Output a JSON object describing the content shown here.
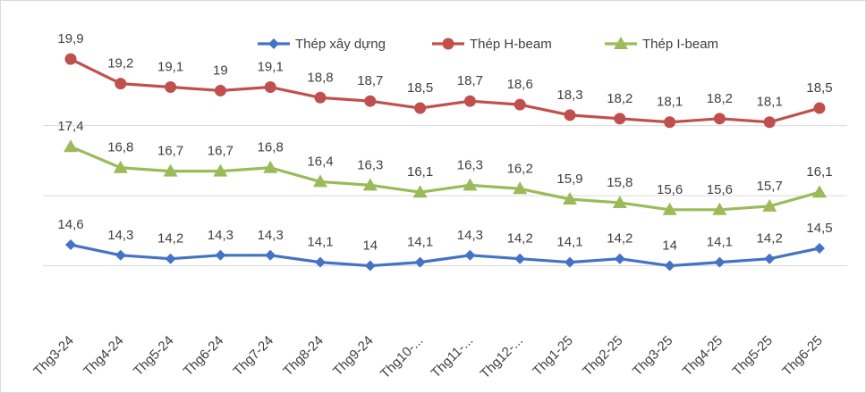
{
  "chart_data": {
    "type": "line",
    "title": "",
    "xlabel": "",
    "ylabel": "",
    "ylim": [
      12,
      21
    ],
    "grid": true,
    "legend_position": "top-right",
    "categories": [
      "Thg3-24",
      "Thg4-24",
      "Thg5-24",
      "Thg6-24",
      "Thg7-24",
      "Thg8-24",
      "Thg9-24",
      "Thg10-...",
      "Thg11-...",
      "Thg12-...",
      "Thg1-25",
      "Thg2-25",
      "Thg3-25",
      "Thg4-25",
      "Thg5-25",
      "Thg6-25"
    ],
    "series": [
      {
        "name": "Thép xây dựng",
        "color": "#4472c4",
        "marker": "diamond",
        "values": [
          14.6,
          14.3,
          14.2,
          14.3,
          14.3,
          14.1,
          14,
          14.1,
          14.3,
          14.2,
          14.1,
          14.2,
          14,
          14.1,
          14.2,
          14.5
        ],
        "labels": [
          "14,6",
          "14,3",
          "14,2",
          "14,3",
          "14,3",
          "14,1",
          "14",
          "14,1",
          "14,3",
          "14,2",
          "14,1",
          "14,2",
          "14",
          "14,1",
          "14,2",
          "14,5"
        ]
      },
      {
        "name": "Thép H-beam",
        "color": "#c0504d",
        "marker": "circle",
        "values": [
          19.9,
          19.2,
          19.1,
          19,
          19.1,
          18.8,
          18.7,
          18.5,
          18.7,
          18.6,
          18.3,
          18.2,
          18.1,
          18.2,
          18.1,
          18.5
        ],
        "labels": [
          "19,9",
          "19,2",
          "19,1",
          "19",
          "19,1",
          "18,8",
          "18,7",
          "18,5",
          "18,7",
          "18,6",
          "18,3",
          "18,2",
          "18,1",
          "18,2",
          "18,1",
          "18,5"
        ]
      },
      {
        "name": "Thép I-beam",
        "color": "#9bbb59",
        "marker": "triangle",
        "values": [
          17.4,
          16.8,
          16.7,
          16.7,
          16.8,
          16.4,
          16.3,
          16.1,
          16.3,
          16.2,
          15.9,
          15.8,
          15.6,
          15.6,
          15.7,
          16.1
        ],
        "labels": [
          "17,4",
          "16,8",
          "16,7",
          "16,7",
          "16,8",
          "16,4",
          "16,3",
          "16,1",
          "16,3",
          "16,2",
          "15,9",
          "15,8",
          "15,6",
          "15,6",
          "15,7",
          "16,1"
        ]
      }
    ]
  }
}
